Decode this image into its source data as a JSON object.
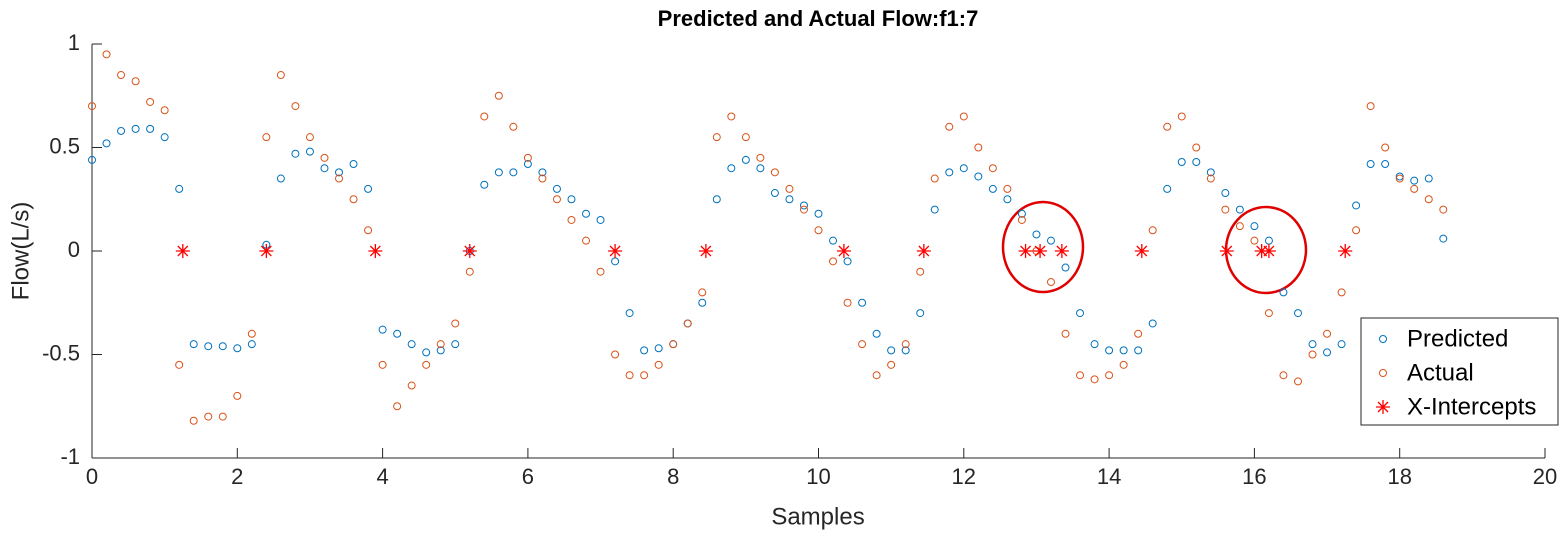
{
  "chart_data": {
    "type": "scatter",
    "title": "Predicted and Actual Flow:f1:7",
    "x_label": "Samples",
    "y_label": "Flow(L/s)",
    "xlim": [
      0,
      20
    ],
    "xticks": [
      0,
      2,
      4,
      6,
      8,
      10,
      12,
      14,
      16,
      18,
      20
    ],
    "ylim": [
      -1,
      1
    ],
    "yticks": [
      -1,
      -0.5,
      0,
      0.5,
      1
    ],
    "legend": "southeast",
    "x": [
      0,
      0.2,
      0.4,
      0.6,
      0.8,
      1,
      1.2,
      1.4,
      1.6,
      1.8,
      2,
      2.2,
      2.4,
      2.6,
      2.8,
      3,
      3.2,
      3.4,
      3.6,
      3.8,
      4,
      4.2,
      4.4,
      4.6,
      4.8,
      5,
      5.2,
      5.4,
      5.6,
      5.8,
      6,
      6.2,
      6.4,
      6.6,
      6.8,
      7,
      7.2,
      7.4,
      7.6,
      7.8,
      8,
      8.2,
      8.4,
      8.6,
      8.8,
      9,
      9.2,
      9.4,
      9.6,
      9.8,
      10,
      10.2,
      10.4,
      10.6,
      10.8,
      11,
      11.2,
      11.4,
      11.6,
      11.8,
      12,
      12.2,
      12.4,
      12.6,
      12.8,
      13,
      13.2,
      13.4,
      13.6,
      13.8,
      14,
      14.2,
      14.4,
      14.6,
      14.8,
      15,
      15.2,
      15.4,
      15.6,
      15.8,
      16,
      16.2,
      16.4,
      16.6,
      16.8,
      17,
      17.2,
      17.4,
      17.6,
      17.8,
      18,
      18.2,
      18.4,
      18.6
    ],
    "series": [
      {
        "name": "Predicted",
        "color": "#0072bd",
        "marker": "circle",
        "values": [
          0.44,
          0.52,
          0.58,
          0.59,
          0.59,
          0.55,
          0.3,
          -0.45,
          -0.46,
          -0.46,
          -0.47,
          -0.45,
          0.03,
          0.35,
          0.47,
          0.48,
          0.4,
          0.38,
          0.42,
          0.3,
          -0.38,
          -0.4,
          -0.45,
          -0.49,
          -0.48,
          -0.45,
          0,
          0.32,
          0.38,
          0.38,
          0.42,
          0.38,
          0.3,
          0.25,
          0.18,
          0.15,
          -0.05,
          -0.3,
          -0.48,
          -0.47,
          -0.45,
          -0.35,
          -0.25,
          0.25,
          0.4,
          0.44,
          0.4,
          0.28,
          0.25,
          0.22,
          0.18,
          0.05,
          -0.05,
          -0.25,
          -0.4,
          -0.48,
          -0.48,
          -0.3,
          0.2,
          0.38,
          0.4,
          0.36,
          0.3,
          0.25,
          0.18,
          0.08,
          0.05,
          -0.08,
          -0.3,
          -0.45,
          -0.48,
          -0.48,
          -0.48,
          -0.35,
          0.3,
          0.43,
          0.43,
          0.38,
          0.28,
          0.2,
          0.12,
          0.05,
          -0.2,
          -0.3,
          -0.45,
          -0.49,
          -0.45,
          0.22,
          0.42,
          0.42,
          0.36,
          0.34,
          0.35,
          0.06
        ]
      },
      {
        "name": "Actual",
        "color": "#d95319",
        "marker": "circle",
        "values": [
          0.7,
          0.95,
          0.85,
          0.82,
          0.72,
          0.68,
          -0.55,
          -0.82,
          -0.8,
          -0.8,
          -0.7,
          -0.4,
          0.55,
          0.85,
          0.7,
          0.55,
          0.45,
          0.35,
          0.25,
          0.1,
          -0.55,
          -0.75,
          -0.65,
          -0.55,
          -0.45,
          -0.35,
          -0.1,
          0.65,
          0.75,
          0.6,
          0.45,
          0.35,
          0.25,
          0.15,
          0.05,
          -0.1,
          -0.5,
          -0.6,
          -0.6,
          -0.55,
          -0.45,
          -0.35,
          -0.2,
          0.55,
          0.65,
          0.55,
          0.45,
          0.38,
          0.3,
          0.2,
          0.1,
          -0.05,
          -0.25,
          -0.45,
          -0.6,
          -0.55,
          -0.45,
          -0.1,
          0.35,
          0.6,
          0.65,
          0.5,
          0.4,
          0.3,
          0.15,
          0,
          -0.15,
          -0.4,
          -0.6,
          -0.62,
          -0.6,
          -0.55,
          -0.4,
          0.1,
          0.6,
          0.65,
          0.5,
          0.35,
          0.2,
          0.12,
          0.05,
          -0.3,
          -0.6,
          -0.63,
          -0.5,
          -0.4,
          -0.2,
          0.1,
          0.7,
          0.5,
          0.35,
          0.3,
          0.25,
          0.2
        ]
      },
      {
        "name": "X-Intercepts",
        "color": "#ff0000",
        "marker": "asterisk",
        "x": [
          1.25,
          2.4,
          3.9,
          5.2,
          7.2,
          8.45,
          10.35,
          11.45,
          12.85,
          13.05,
          13.35,
          14.45,
          15.62,
          16.1,
          16.2,
          17.25
        ],
        "values": [
          0,
          0,
          0,
          0,
          0,
          0,
          0,
          0,
          0,
          0,
          0,
          0,
          0,
          0,
          0,
          0
        ]
      }
    ]
  }
}
